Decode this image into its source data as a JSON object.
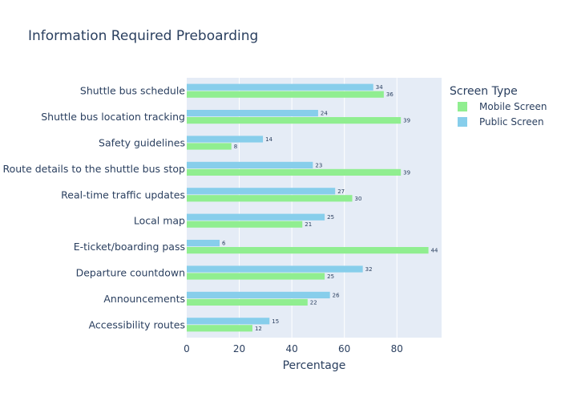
{
  "chart_data": {
    "type": "bar",
    "orientation": "horizontal",
    "title": "Information Required Preboarding",
    "xlabel": "Percentage",
    "ylabel": "",
    "xlim": [
      0,
      97
    ],
    "xticks": [
      0,
      20,
      40,
      60,
      80
    ],
    "categories": [
      "Shuttle bus schedule",
      "Shuttle bus location tracking",
      "Safety guidelines",
      "Route details to the shuttle bus stop",
      "Real-time traffic updates",
      "Local map",
      "E-ticket/boarding pass",
      "Departure countdown",
      "Announcements",
      "Accessibility routes"
    ],
    "series": [
      {
        "name": "Mobile Screen",
        "color": "#90ee90",
        "values": [
          75,
          81.5,
          17,
          81.5,
          63,
          44,
          92,
          52.5,
          46,
          25
        ],
        "labels": [
          "36",
          "39",
          "8",
          "39",
          "30",
          "21",
          "44",
          "25",
          "22",
          "12"
        ]
      },
      {
        "name": "Public Screen",
        "color": "#87ceeb",
        "values": [
          71,
          50,
          29,
          48,
          56.5,
          52.5,
          12.5,
          67,
          54.5,
          31.5
        ],
        "labels": [
          "34",
          "24",
          "14",
          "23",
          "27",
          "25",
          "6",
          "32",
          "26",
          "15"
        ]
      }
    ],
    "legend": {
      "title": "Screen Type",
      "position": "top-right"
    },
    "grid": true,
    "colors": {
      "plot_bg": "#e5ecf6",
      "grid": "#ffffff",
      "text": "#2a3f5f"
    }
  }
}
